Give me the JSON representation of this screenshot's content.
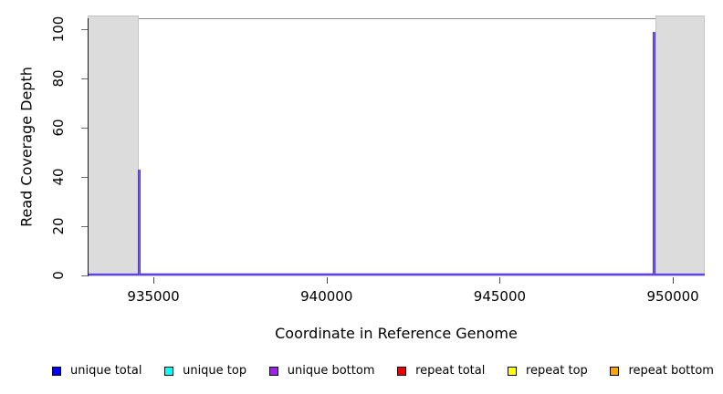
{
  "chart_data": {
    "type": "line",
    "title": "",
    "xlabel": "Coordinate in Reference Genome",
    "ylabel": "Read Coverage Depth",
    "xlim": [
      933100,
      950920
    ],
    "ylim": [
      0,
      104.4
    ],
    "x_ticks": [
      935000,
      940000,
      945000,
      950000
    ],
    "y_ticks": [
      0,
      20,
      40,
      60,
      80,
      100
    ],
    "grid": false,
    "legend_position": "bottom",
    "baseline_depth": 0,
    "spikes": [
      {
        "x": 934600,
        "depth": 43
      },
      {
        "x": 949470,
        "depth": 99
      }
    ],
    "masked_regions": [
      {
        "start": 933100,
        "end": 934580
      },
      {
        "start": 949500,
        "end": 950920
      }
    ],
    "legend": [
      {
        "label": "unique total",
        "color": "#0000FF"
      },
      {
        "label": "unique top",
        "color": "#00FFFF"
      },
      {
        "label": "unique bottom",
        "color": "#A020F0"
      },
      {
        "label": "repeat total",
        "color": "#EE0000"
      },
      {
        "label": "repeat top",
        "color": "#FFFF00"
      },
      {
        "label": "repeat bottom",
        "color": "#FFA500"
      }
    ],
    "colors": {
      "spike_blend": "#5B3EE8",
      "baseline_line": "#5A47E0",
      "baseline_halo": "#CCBBEE",
      "masked_fill": "#DCDCDC",
      "masked_border": "#C4C4C4",
      "box_border": "#8A8A8A",
      "axis_line": "#1A1A1A"
    }
  }
}
